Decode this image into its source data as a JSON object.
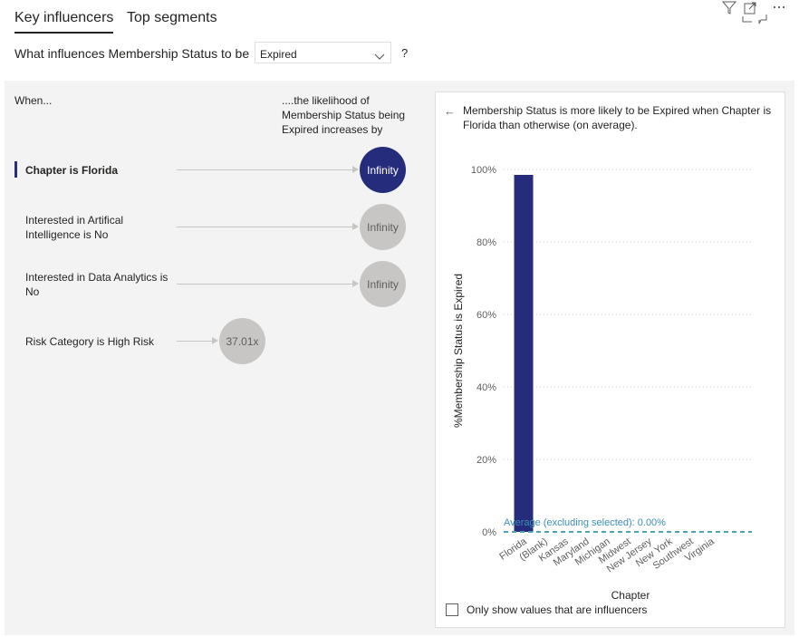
{
  "tabs": [
    {
      "label": "Key influencers",
      "active": true
    },
    {
      "label": "Top segments",
      "active": false
    }
  ],
  "header_icons": [
    "filter-icon",
    "focus-mode-icon",
    "more-options-icon"
  ],
  "question": {
    "label": "What influences Membership Status to be",
    "selected_value": "Expired",
    "help": "?"
  },
  "columns": {
    "when": "When...",
    "likelihood": "....the likelihood of Membership Status being Expired increases by"
  },
  "influencers": [
    {
      "label": "Chapter is Florida",
      "value": "Infinity",
      "selected": true
    },
    {
      "label": "Interested in Artifical Intelligence is No",
      "value": "Infinity",
      "selected": false
    },
    {
      "label": "Interested in Data Analytics is No",
      "value": "Infinity",
      "selected": false
    },
    {
      "label": "Risk Category is High Risk",
      "value": "37.01x",
      "selected": false
    }
  ],
  "detail": {
    "explanation": "Membership Status is more likely to be Expired when Chapter is Florida than otherwise (on average).",
    "show_influencers_only_label": "Only show values that are influencers",
    "show_influencers_only_checked": false
  },
  "colors": {
    "selected": "#252c7c",
    "bar": "#252c7c",
    "unselected": "#c8c6c4",
    "average_line": "#4aa3b8"
  },
  "chart_data": {
    "type": "bar",
    "categories": [
      "Florida",
      "(Blank)",
      "Kansas",
      "Maryland",
      "Michigan",
      "Midwest",
      "New Jersey",
      "New York",
      "Southwest",
      "Virginia"
    ],
    "values": [
      98.5,
      0,
      0,
      0,
      0,
      0,
      0,
      0,
      0,
      0
    ],
    "xlabel": "Chapter",
    "ylabel": "%Membership Status is Expired",
    "ylim": [
      0,
      100
    ],
    "ytick_labels": [
      "0%",
      "20%",
      "40%",
      "60%",
      "80%",
      "100%"
    ],
    "yticks": [
      0,
      20,
      40,
      60,
      80,
      100
    ],
    "grid": true,
    "average_value": 0,
    "average_label": "Average (excluding selected): 0.00%"
  }
}
